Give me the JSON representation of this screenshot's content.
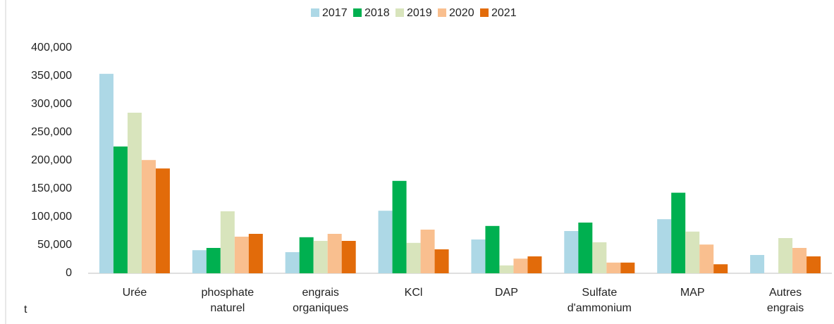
{
  "chart_data": {
    "type": "bar",
    "y_label": "t",
    "categories": [
      "Urée",
      "phosphate naturel",
      "engrais organiques",
      "KCl",
      "DAP",
      "Sulfate d'ammonium",
      "MAP",
      "Autres engrais"
    ],
    "series": [
      {
        "name": "2017",
        "color": "#add8e6",
        "values": [
          354000,
          41000,
          37500,
          111000,
          60000,
          75000,
          96000,
          32500
        ]
      },
      {
        "name": "2018",
        "color": "#00b050",
        "values": [
          225000,
          45000,
          64000,
          164000,
          84000,
          90000,
          143000,
          null
        ]
      },
      {
        "name": "2019",
        "color": "#d8e4bc",
        "values": [
          285000,
          110000,
          57500,
          54000,
          14000,
          55000,
          74000,
          62500
        ]
      },
      {
        "name": "2020",
        "color": "#f9bf8f",
        "values": [
          201000,
          65000,
          70000,
          77500,
          26000,
          19000,
          51000,
          45000
        ]
      },
      {
        "name": "2021",
        "color": "#e26b0a",
        "values": [
          186000,
          70000,
          57500,
          42500,
          30000,
          19000,
          16000,
          30000
        ]
      }
    ],
    "ylim": [
      0,
      400000
    ],
    "yticks": [
      0,
      {
        "value": 50000,
        "label": "50,000"
      },
      {
        "value": 100000,
        "label": "100,000"
      },
      {
        "value": 150000,
        "label": "150,000"
      },
      {
        "value": 200000,
        "label": "200,000"
      },
      {
        "value": 250000,
        "label": "250,000"
      },
      {
        "value": 300000,
        "label": "300,000"
      },
      {
        "value": 350000,
        "label": "350,000"
      },
      {
        "value": 400000,
        "label": "400,000"
      }
    ],
    "grid": false,
    "legend": "top"
  }
}
